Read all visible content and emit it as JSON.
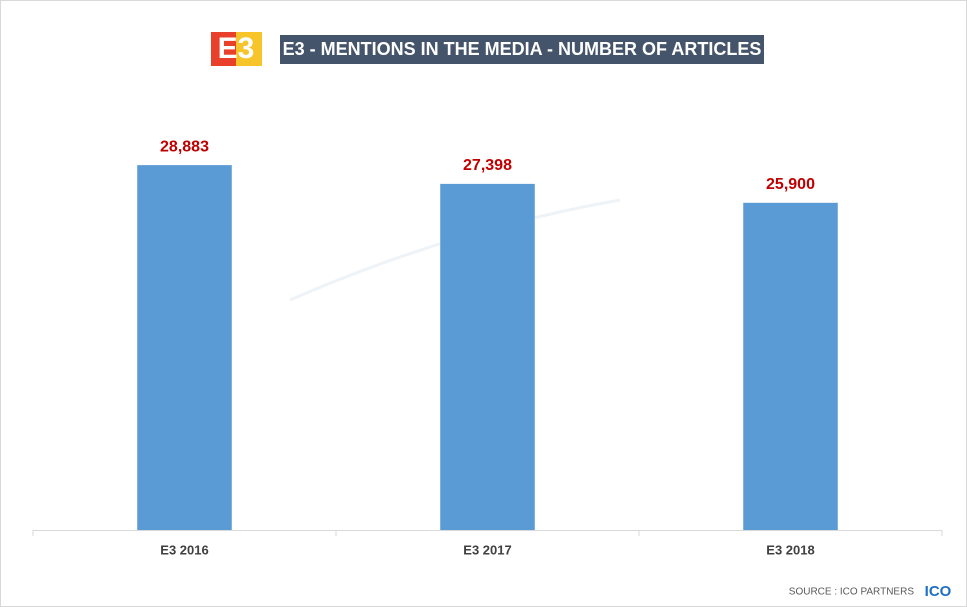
{
  "chart_data": {
    "type": "bar",
    "logo": "E3",
    "title": "E3 - MENTIONS IN THE MEDIA - NUMBER OF ARTICLES",
    "categories": [
      "E3 2016",
      "E3 2017",
      "E3 2018"
    ],
    "values": [
      28883,
      27398,
      25900
    ],
    "value_labels": [
      "28,883",
      "27,398",
      "25,900"
    ],
    "color": "#5b9bd5",
    "value_label_color": "#c00000",
    "ylim": [
      0,
      30000
    ],
    "grid": false,
    "source": "SOURCE : ICO PARTNERS",
    "source_logo": "ICO"
  }
}
